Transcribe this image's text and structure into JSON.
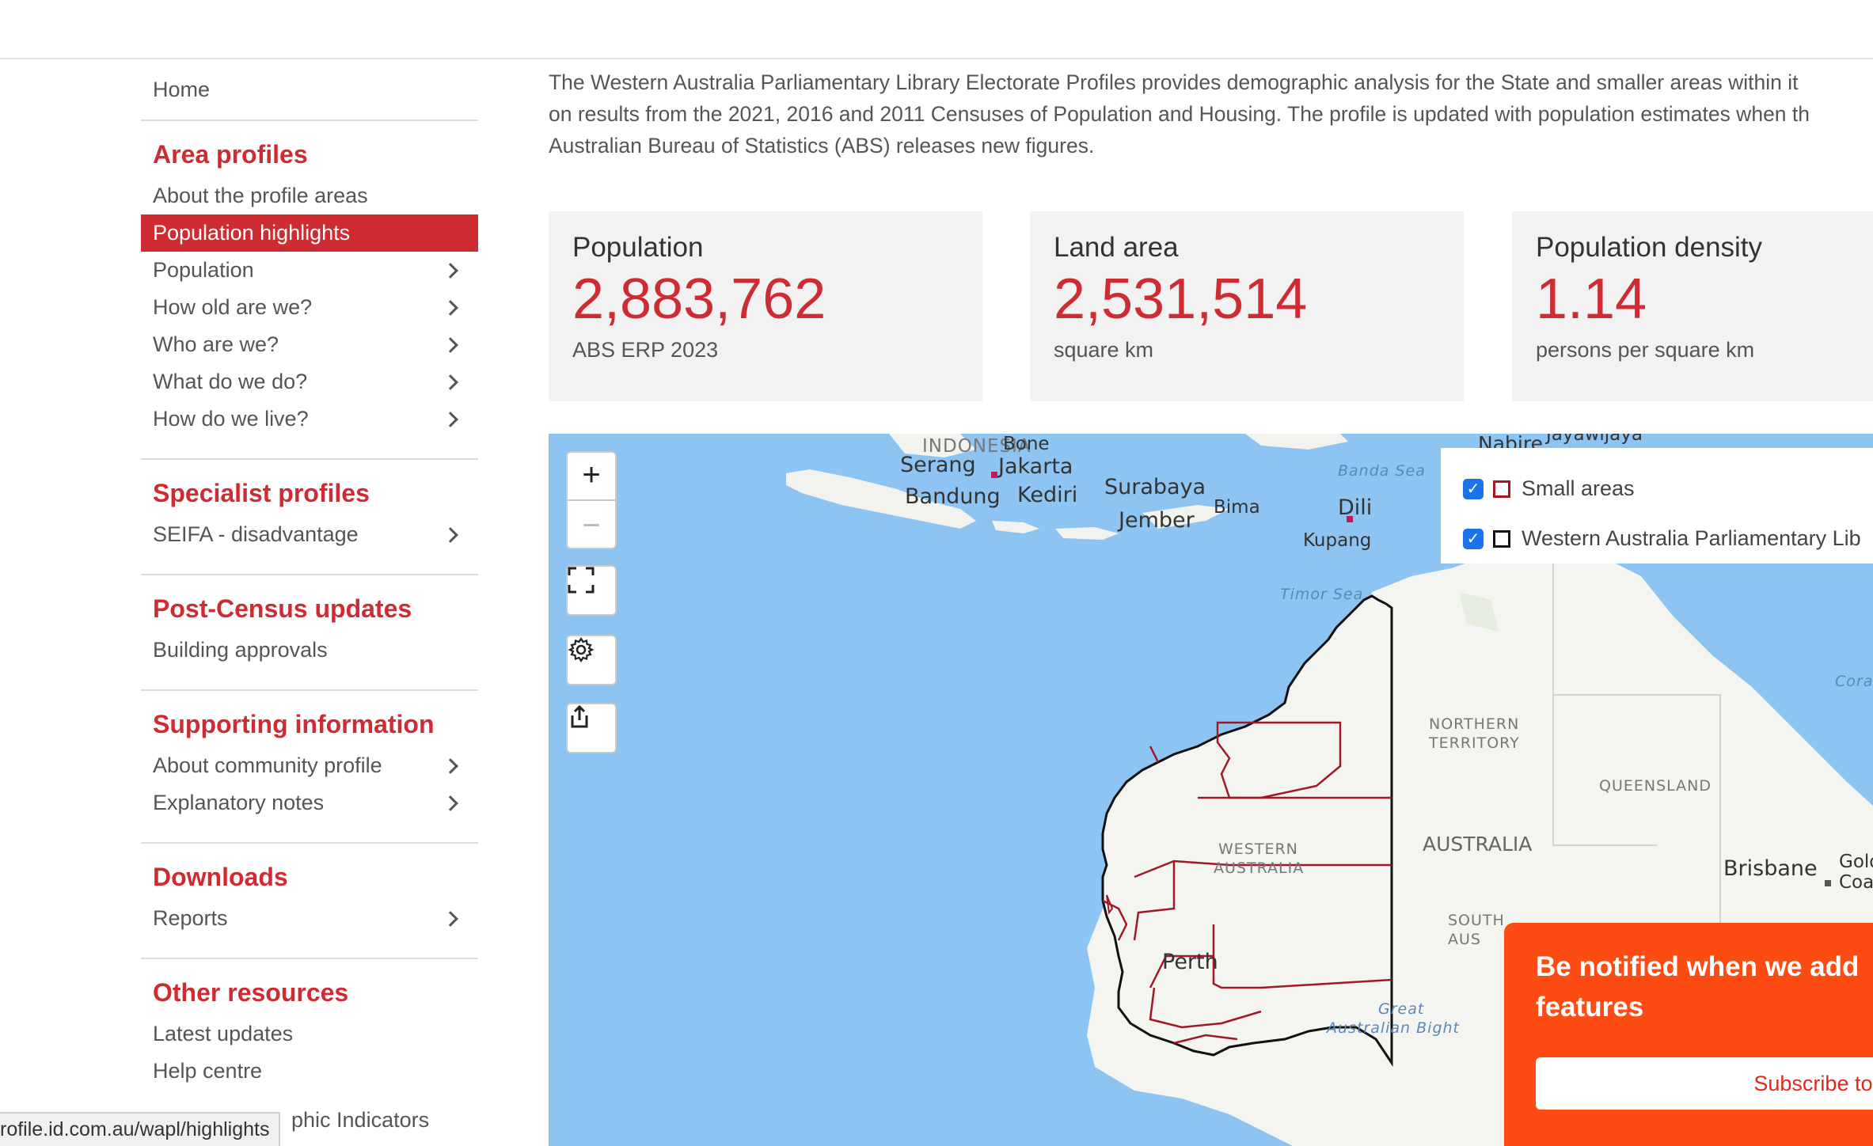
{
  "sidebar": {
    "home": "Home",
    "sections": [
      {
        "heading": "Area profiles",
        "items": [
          {
            "label": "About the profile areas",
            "chevron": false,
            "active": false
          },
          {
            "label": "Population highlights",
            "chevron": false,
            "active": true
          },
          {
            "label": "Population",
            "chevron": true,
            "active": false
          },
          {
            "label": "How old are we?",
            "chevron": true,
            "active": false
          },
          {
            "label": "Who are we?",
            "chevron": true,
            "active": false
          },
          {
            "label": "What do we do?",
            "chevron": true,
            "active": false
          },
          {
            "label": "How do we live?",
            "chevron": true,
            "active": false
          }
        ]
      },
      {
        "heading": "Specialist profiles",
        "items": [
          {
            "label": "SEIFA - disadvantage",
            "chevron": true,
            "active": false
          }
        ]
      },
      {
        "heading": "Post-Census updates",
        "items": [
          {
            "label": "Building approvals",
            "chevron": false,
            "active": false
          }
        ]
      },
      {
        "heading": "Supporting information",
        "items": [
          {
            "label": "About community profile",
            "chevron": true,
            "active": false
          },
          {
            "label": "Explanatory notes",
            "chevron": true,
            "active": false
          }
        ]
      },
      {
        "heading": "Downloads",
        "items": [
          {
            "label": "Reports",
            "chevron": true,
            "active": false
          }
        ]
      },
      {
        "heading": "Other resources",
        "items": [
          {
            "label": "Latest updates",
            "chevron": false,
            "active": false
          },
          {
            "label": "Help centre",
            "chevron": false,
            "active": false
          }
        ]
      }
    ],
    "partial_item": "phic Indicators"
  },
  "intro": {
    "line1": "The Western Australia Parliamentary Library Electorate Profiles provides demographic analysis for the State and smaller areas within it",
    "line2": "on results from the 2021, 2016 and 2011 Censuses of Population and Housing. The profile is updated with population estimates when th",
    "line3": "Australian Bureau of Statistics (ABS) releases new figures."
  },
  "stats": [
    {
      "title": "Population",
      "value": "2,883,762",
      "sub": "ABS ERP 2023"
    },
    {
      "title": "Land area",
      "value": "2,531,514",
      "sub": "square km"
    },
    {
      "title": "Population density",
      "value": "1.14",
      "sub": "persons per square km"
    }
  ],
  "map": {
    "controls": {
      "zoom_in": "+",
      "zoom_out": "−"
    },
    "legend": [
      {
        "label": "Small areas",
        "checked": true
      },
      {
        "label": "Western Australia Parliamentary Lib",
        "checked": true
      }
    ],
    "labels": {
      "indonesia": "INDONESIA",
      "bone": "Bone",
      "nabire": "Nabire",
      "jayawijaya": "Jayawijaya",
      "serang": "Serang",
      "jakarta": "Jakarta",
      "bandung": "Bandung",
      "kediri": "Kediri",
      "surabaya": "Surabaya",
      "jember": "Jember",
      "bima": "Bima",
      "dili": "Dili",
      "kupang": "Kupang",
      "banda_sea": "Banda Sea",
      "timor_sea": "Timor Sea",
      "coral": "Cora",
      "northern_territory_1": "NORTHERN",
      "northern_territory_2": "TERRITORY",
      "queensland": "QUEENSLAND",
      "australia": "AUSTRALIA",
      "western_australia_1": "WESTERN",
      "western_australia_2": "AUSTRALIA",
      "brisbane": "Brisbane",
      "gold_coast_1": "Gold",
      "gold_coast_2": "Coa",
      "south_aus_1": "SOUTH",
      "south_aus_2": "AUS",
      "perth": "Perth",
      "great_bight_1": "Great",
      "great_bight_2": "Australian Bight"
    }
  },
  "notify": {
    "title_line1": "Be notified when we add",
    "title_line2": "features",
    "button": "Subscribe to u"
  },
  "status_url": "rofile.id.com.au/wapl/highlights"
}
